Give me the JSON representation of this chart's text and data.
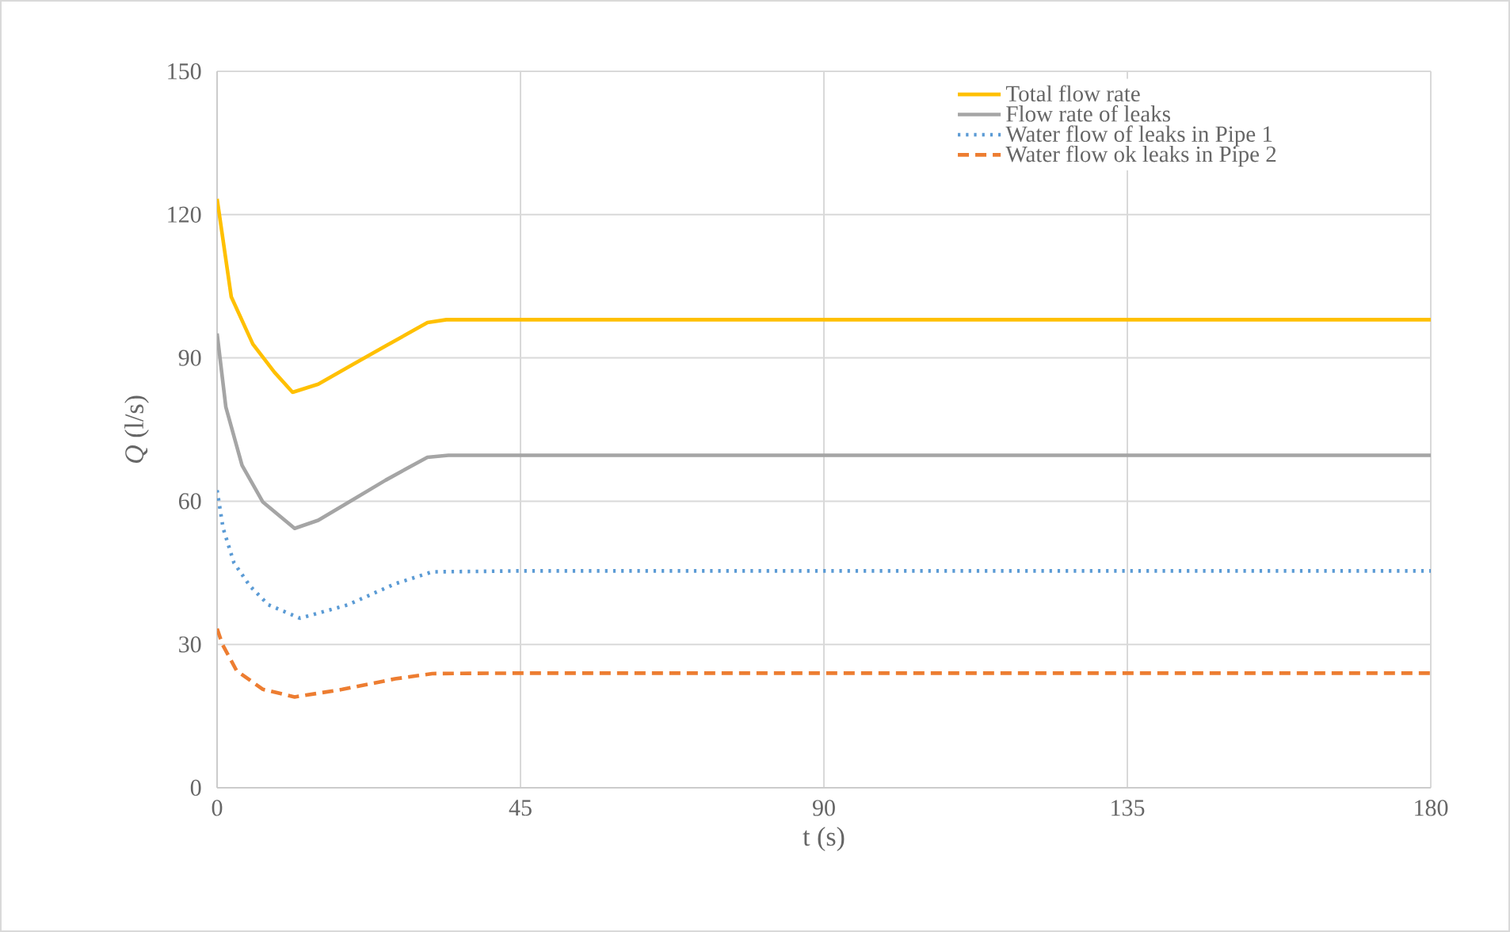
{
  "chart_data": {
    "type": "line",
    "xlabel": "t (s)",
    "ylabel": "*Q* (l/s)",
    "xlim": [
      0,
      180
    ],
    "ylim": [
      0,
      150
    ],
    "xticks": [
      0,
      45,
      90,
      135,
      180
    ],
    "yticks": [
      0,
      30,
      60,
      90,
      120,
      150
    ],
    "grid": true,
    "legend": "top right",
    "series": [
      {
        "name": "Total flow rate",
        "color": "#ffc000",
        "line_style": "solid",
        "x": [
          0,
          2.1,
          5.3,
          8.5,
          11.2,
          15,
          20,
          25,
          31.2,
          34,
          45,
          90,
          135,
          180
        ],
        "values": [
          123.3,
          102.8,
          92.9,
          87,
          82.8,
          84.5,
          88.5,
          92.5,
          97.4,
          98,
          98,
          98,
          98,
          98
        ]
      },
      {
        "name": "Flow rate of leaks",
        "color": "#a5a5a5",
        "line_style": "solid",
        "x": [
          0,
          1.3,
          3.7,
          6.8,
          11.5,
          15,
          20,
          25,
          31.2,
          34.3,
          45,
          90,
          135,
          180
        ],
        "values": [
          95.1,
          79.7,
          67.5,
          59.8,
          54.3,
          56,
          60.2,
          64.4,
          69.2,
          69.6,
          69.6,
          69.6,
          69.6,
          69.6
        ]
      },
      {
        "name": "Water flow of leaks in Pipe 1",
        "color": "#5b9bd5",
        "line_style": "dotted",
        "x": [
          0,
          0.9,
          2.5,
          4.9,
          7.6,
          12.3,
          19.4,
          26.4,
          31.9,
          45,
          90,
          135,
          180
        ],
        "values": [
          62.3,
          54.3,
          47.1,
          42.2,
          38.3,
          35.5,
          38.3,
          42.7,
          45.2,
          45.4,
          45.4,
          45.4,
          45.4
        ]
      },
      {
        "name": "Water flow ok leaks in Pipe 2",
        "color": "#ed7d31",
        "line_style": "dashed",
        "x": [
          0,
          0.8,
          2.9,
          6.8,
          11.5,
          18.6,
          26.4,
          31.9,
          45,
          90,
          135,
          180
        ],
        "values": [
          33.3,
          30,
          24.5,
          20.6,
          19.0,
          20.6,
          22.8,
          23.9,
          24,
          24,
          24,
          24
        ]
      }
    ]
  }
}
